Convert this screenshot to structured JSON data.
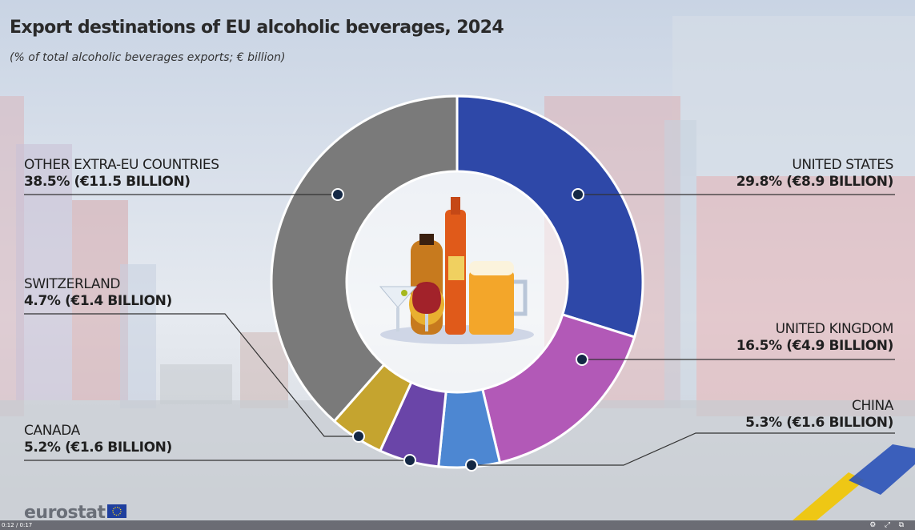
{
  "header": {
    "title": "Export destinations of EU alcoholic beverages, 2024",
    "subtitle": "(% of total alcoholic beverages exports; € billion)"
  },
  "chart_data": {
    "type": "pie",
    "title": "Export destinations of EU alcoholic beverages, 2024",
    "subtitle": "(% of total alcoholic beverages exports; € billion)",
    "donut": true,
    "slices": [
      {
        "name": "UNITED STATES",
        "value": 29.8,
        "amount": 8.9,
        "label": "29.8% (€8.9 BILLION)",
        "color": "#2e48a8"
      },
      {
        "name": "UNITED KINGDOM",
        "value": 16.5,
        "amount": 4.9,
        "label": "16.5% (€4.9 BILLION)",
        "color": "#b259b7"
      },
      {
        "name": "CHINA",
        "value": 5.3,
        "amount": 1.6,
        "label": "5.3% (€1.6 BILLION)",
        "color": "#4d87d2"
      },
      {
        "name": "CANADA",
        "value": 5.2,
        "amount": 1.6,
        "label": "5.2% (€1.6 BILLION)",
        "color": "#6a45a8"
      },
      {
        "name": "SWITZERLAND",
        "value": 4.7,
        "amount": 1.4,
        "label": "4.7% (€1.4 BILLION)",
        "color": "#c5a42f"
      },
      {
        "name": "OTHER EXTRA-EU COUNTRIES",
        "value": 38.5,
        "amount": 11.5,
        "label": "38.5% (€11.5 BILLION)",
        "color": "#7a7a7a"
      }
    ]
  },
  "branding": {
    "logo": "eurostat",
    "flag": "eu-flag-icon"
  },
  "player": {
    "time": "0:12 / 0:17",
    "icons": [
      "gear-icon",
      "fullscreen-icon",
      "share-icon"
    ]
  }
}
